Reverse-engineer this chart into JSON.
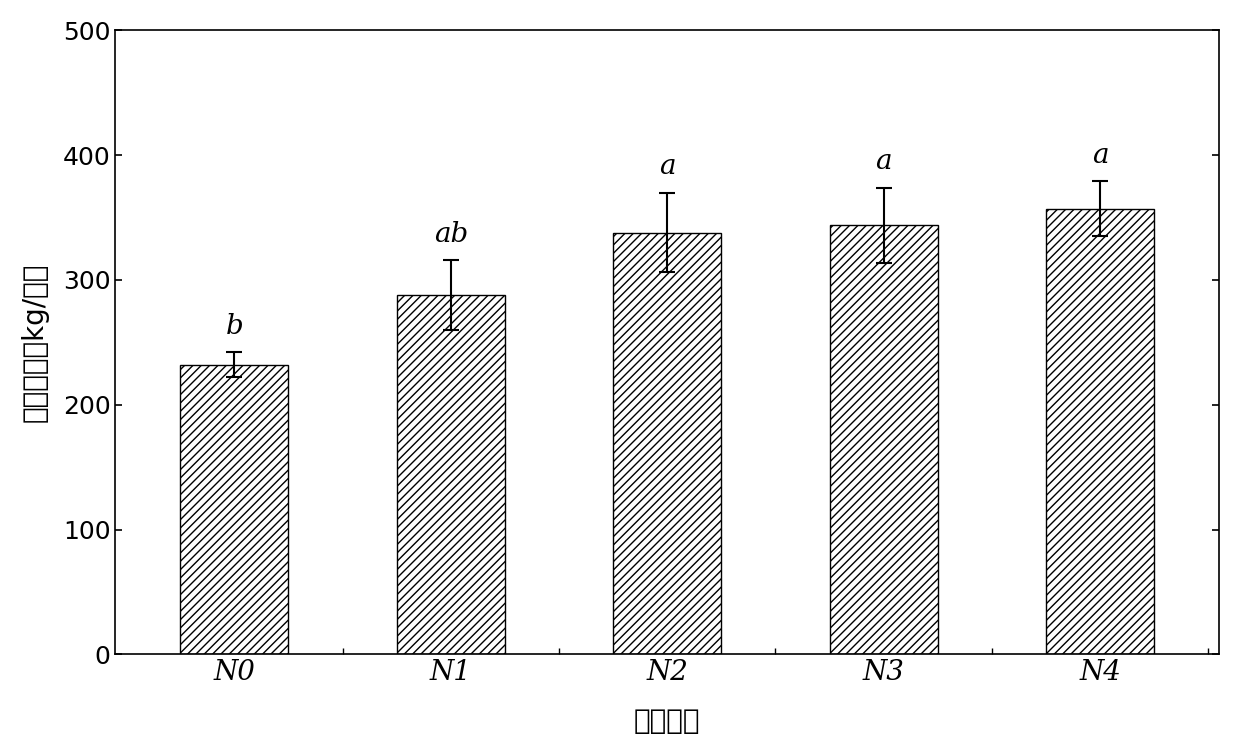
{
  "categories": [
    "N0",
    "N1",
    "N2",
    "N3",
    "N4"
  ],
  "values": [
    232,
    288,
    338,
    344,
    357
  ],
  "errors": [
    10,
    28,
    32,
    30,
    22
  ],
  "labels": [
    "b",
    "ab",
    "a",
    "a",
    "a"
  ],
  "ylabel": "大麦产量（kg/亩）",
  "xlabel": "试验处理",
  "ylim": [
    0,
    500
  ],
  "yticks": [
    0,
    100,
    200,
    300,
    400,
    500
  ],
  "bar_color": "#ffffff",
  "bar_edgecolor": "#000000",
  "hatch": "////",
  "figsize": [
    12.4,
    7.56
  ],
  "dpi": 100
}
